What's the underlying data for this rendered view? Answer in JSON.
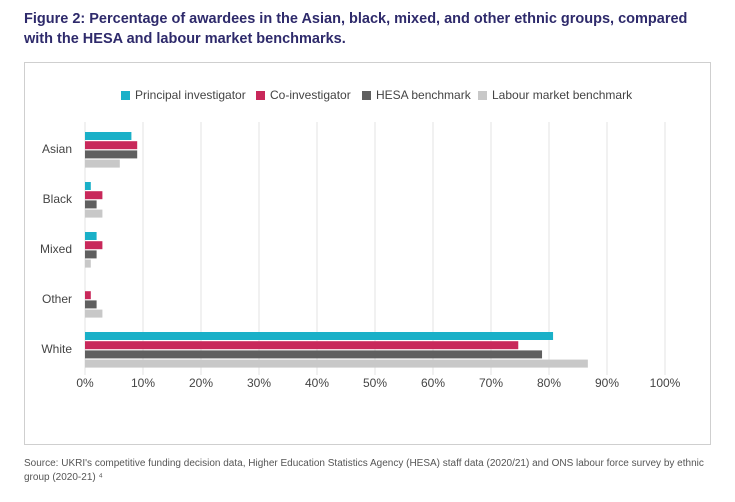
{
  "chart_data": {
    "type": "hbar",
    "title": "Figure 2: Percentage of awardees in the Asian, black, mixed, and other ethnic groups, compared with the HESA and labour market benchmarks.",
    "source": "Source: UKRI's competitive funding decision data, Higher Education Statistics Agency (HESA) staff data (2020/21) and ONS labour force survey by ethnic group (2020-21) ⁴",
    "categories": [
      "Asian",
      "Black",
      "Mixed",
      "Other",
      "White"
    ],
    "series": [
      {
        "name": "Principal investigator",
        "color": "#1ab0c8",
        "values": [
          8,
          1,
          2,
          0,
          80.7
        ]
      },
      {
        "name": "Co-investigator",
        "color": "#c8285a",
        "values": [
          9,
          3,
          3,
          1,
          74.7
        ]
      },
      {
        "name": "HESA benchmark",
        "color": "#5f5f5f",
        "values": [
          9,
          2,
          2,
          2,
          78.8
        ]
      },
      {
        "name": "Labour market benchmark",
        "color": "#c8c8c8",
        "values": [
          6,
          3,
          1,
          3,
          86.7
        ]
      }
    ],
    "xlim": [
      0,
      100
    ],
    "xticks": [
      {
        "value": 0,
        "label": "0%"
      },
      {
        "value": 10,
        "label": "10%"
      },
      {
        "value": 20,
        "label": "20%"
      },
      {
        "value": 30,
        "label": "30%"
      },
      {
        "value": 40,
        "label": "40%"
      },
      {
        "value": 50,
        "label": "50%"
      },
      {
        "value": 60,
        "label": "60%"
      },
      {
        "value": 70,
        "label": "70%"
      },
      {
        "value": 80,
        "label": "80%"
      },
      {
        "value": 90,
        "label": "90%"
      },
      {
        "value": 100,
        "label": "100%"
      }
    ],
    "grid": true,
    "legend": "top"
  }
}
